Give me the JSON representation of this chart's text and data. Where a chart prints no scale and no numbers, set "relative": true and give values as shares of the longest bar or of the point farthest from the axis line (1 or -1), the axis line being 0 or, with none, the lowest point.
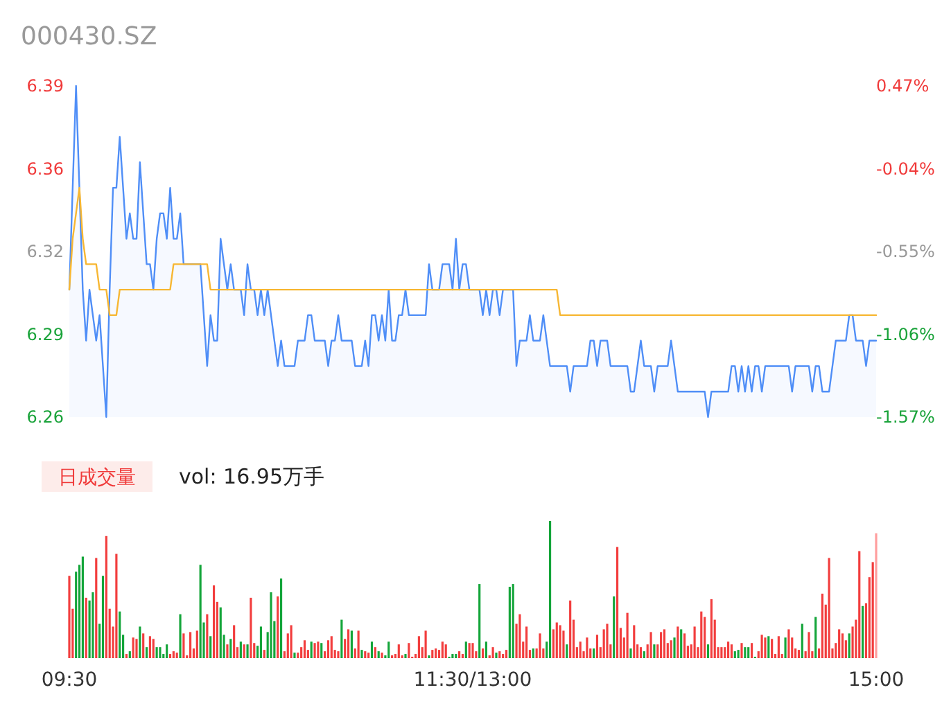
{
  "chart_data": [
    {
      "type": "line",
      "title": "000430.SZ",
      "tick_labels": "y",
      "categories": [
        null,
        null,
        null,
        null,
        null,
        null,
        null,
        null,
        null,
        null,
        null,
        null,
        null,
        null,
        null,
        null,
        null,
        null,
        null,
        null,
        null,
        null,
        null,
        null,
        null,
        null,
        null,
        null,
        null,
        null,
        null,
        null,
        null,
        null,
        null,
        null,
        null,
        null,
        null,
        null,
        null,
        null,
        null,
        null,
        null,
        null,
        null,
        null,
        null,
        null,
        null,
        null,
        null,
        null,
        null,
        null,
        null,
        null,
        null,
        null,
        null,
        null,
        null,
        null,
        null,
        null,
        null,
        null,
        null,
        null,
        null,
        null,
        null,
        null,
        null,
        null,
        null,
        null,
        null,
        null,
        null,
        null,
        null,
        null,
        null,
        null,
        null,
        null,
        null,
        null,
        null,
        null,
        null,
        null,
        null,
        null,
        null,
        null,
        null,
        null,
        null,
        null,
        null,
        null,
        null,
        null,
        null,
        null,
        null,
        null,
        null,
        null,
        null,
        null,
        null,
        null,
        null,
        null,
        null,
        null,
        null,
        null,
        null,
        null,
        null,
        null,
        null,
        null,
        null,
        null,
        null,
        null,
        null,
        null,
        null,
        null,
        null,
        null,
        null,
        null,
        null,
        null,
        null,
        null,
        null,
        null,
        null,
        null,
        null,
        null,
        null,
        null,
        null,
        null,
        null,
        null,
        null,
        null,
        null,
        null,
        null,
        null,
        null,
        null,
        null,
        null,
        null,
        null,
        null,
        null,
        null,
        null,
        null,
        null,
        null,
        null,
        null,
        null,
        null,
        null,
        null,
        null,
        null,
        null,
        null,
        null,
        null,
        null,
        null,
        null,
        null,
        null,
        null,
        null,
        null,
        null,
        null,
        null,
        null,
        null,
        null,
        null,
        null,
        null,
        null,
        null,
        null,
        null,
        null,
        null,
        null,
        null,
        null,
        null,
        null,
        null,
        null,
        null,
        null,
        null,
        null,
        null,
        null,
        null,
        null,
        null,
        null,
        null,
        null,
        null,
        null,
        null,
        null,
        null,
        null,
        null,
        null,
        null,
        null,
        null,
        null
      ],
      "ylim": [
        6.26,
        6.39
      ],
      "yticks": [
        6.26,
        {
          "value": 6.2925,
          "label": "6.29"
        },
        {
          "value": 6.325,
          "label": "6.32"
        },
        {
          "value": 6.3575,
          "label": "6.36"
        },
        6.39
      ],
      "y2lim": [
        -1.57,
        0.47
      ],
      "y2ticks": [
        {
          "value": -1.57,
          "label": "-1.57%"
        },
        {
          "value": -1.06,
          "label": "-1.06%"
        },
        {
          "value": -0.55,
          "label": "-0.55%"
        },
        {
          "value": -0.04,
          "label": "-0.04%"
        },
        {
          "value": 0.47,
          "label": "0.47%"
        }
      ],
      "series": [
        {
          "type": "area",
          "color": "#4f8ef7",
          "values": [
            6.31,
            6.35,
            6.39,
            6.35,
            6.31,
            6.29,
            6.31,
            6.3,
            6.29,
            6.3,
            6.28,
            6.26,
            6.31,
            6.35,
            6.35,
            6.37,
            6.35,
            6.33,
            6.34,
            6.33,
            6.33,
            6.36,
            6.34,
            6.32,
            6.32,
            6.31,
            6.33,
            6.34,
            6.34,
            6.33,
            6.35,
            6.33,
            6.33,
            6.34,
            6.32,
            6.32,
            6.32,
            6.32,
            6.32,
            6.32,
            6.3,
            6.28,
            6.3,
            6.29,
            6.29,
            6.33,
            6.32,
            6.31,
            6.32,
            6.31,
            6.31,
            6.31,
            6.3,
            6.32,
            6.31,
            6.31,
            6.3,
            6.31,
            6.3,
            6.31,
            6.3,
            6.29,
            6.28,
            6.29,
            6.28,
            6.28,
            6.28,
            6.28,
            6.29,
            6.29,
            6.29,
            6.3,
            6.3,
            6.29,
            6.29,
            6.29,
            6.29,
            6.28,
            6.29,
            6.29,
            6.3,
            6.29,
            6.29,
            6.29,
            6.29,
            6.28,
            6.28,
            6.28,
            6.29,
            6.28,
            6.3,
            6.3,
            6.29,
            6.3,
            6.29,
            6.31,
            6.29,
            6.29,
            6.3,
            6.3,
            6.31,
            6.3,
            6.3,
            6.3,
            6.3,
            6.3,
            6.3,
            6.32,
            6.31,
            6.31,
            6.31,
            6.32,
            6.32,
            6.32,
            6.31,
            6.33,
            6.31,
            6.32,
            6.32,
            6.31,
            6.31,
            6.31,
            6.31,
            6.3,
            6.31,
            6.3,
            6.31,
            6.31,
            6.3,
            6.31,
            6.31,
            6.31,
            6.31,
            6.28,
            6.29,
            6.29,
            6.29,
            6.3,
            6.29,
            6.29,
            6.29,
            6.3,
            6.29,
            6.28,
            6.28,
            6.28,
            6.28,
            6.28,
            6.28,
            6.27,
            6.28,
            6.28,
            6.28,
            6.28,
            6.28,
            6.29,
            6.29,
            6.28,
            6.29,
            6.29,
            6.29,
            6.28,
            6.28,
            6.28,
            6.28,
            6.28,
            6.28,
            6.27,
            6.27,
            6.28,
            6.29,
            6.28,
            6.28,
            6.28,
            6.27,
            6.28,
            6.28,
            6.28,
            6.28,
            6.29,
            6.28,
            6.27,
            6.27,
            6.27,
            6.27,
            6.27,
            6.27,
            6.27,
            6.27,
            6.27,
            6.26,
            6.27,
            6.27,
            6.27,
            6.27,
            6.27,
            6.27,
            6.28,
            6.28,
            6.27,
            6.28,
            6.27,
            6.28,
            6.27,
            6.28,
            6.28,
            6.27,
            6.28,
            6.28,
            6.28,
            6.28,
            6.28,
            6.28,
            6.28,
            6.28,
            6.27,
            6.28,
            6.28,
            6.28,
            6.28,
            6.28,
            6.27,
            6.28,
            6.28,
            6.27,
            6.27,
            6.27,
            6.28,
            6.29,
            6.29,
            6.29,
            6.29,
            6.3,
            6.3,
            6.29,
            6.29,
            6.29,
            6.28,
            6.29,
            6.29,
            6.29
          ]
        },
        {
          "color": "#f7b733",
          "values": [
            6.31,
            6.33,
            6.34,
            6.35,
            6.33,
            6.32,
            6.32,
            6.32,
            6.32,
            6.31,
            6.31,
            6.31,
            6.3,
            6.3,
            6.3,
            6.31,
            6.31,
            6.31,
            6.31,
            6.31,
            6.31,
            6.31,
            6.31,
            6.31,
            6.31,
            6.31,
            6.31,
            6.31,
            6.31,
            6.31,
            6.31,
            6.32,
            6.32,
            6.32,
            6.32,
            6.32,
            6.32,
            6.32,
            6.32,
            6.32,
            6.32,
            6.32,
            6.31,
            6.31,
            6.31,
            6.31,
            6.31,
            6.31,
            6.31,
            6.31,
            6.31,
            6.31,
            6.31,
            6.31,
            6.31,
            6.31,
            6.31,
            6.31,
            6.31,
            6.31,
            6.31,
            6.31,
            6.31,
            6.31,
            6.31,
            6.31,
            6.31,
            6.31,
            6.31,
            6.31,
            6.31,
            6.31,
            6.31,
            6.31,
            6.31,
            6.31,
            6.31,
            6.31,
            6.31,
            6.31,
            6.31,
            6.31,
            6.31,
            6.31,
            6.31,
            6.31,
            6.31,
            6.31,
            6.31,
            6.31,
            6.31,
            6.31,
            6.31,
            6.31,
            6.31,
            6.31,
            6.31,
            6.31,
            6.31,
            6.31,
            6.31,
            6.31,
            6.31,
            6.31,
            6.31,
            6.31,
            6.31,
            6.31,
            6.31,
            6.31,
            6.31,
            6.31,
            6.31,
            6.31,
            6.31,
            6.31,
            6.31,
            6.31,
            6.31,
            6.31,
            6.31,
            6.31,
            6.31,
            6.31,
            6.31,
            6.31,
            6.31,
            6.31,
            6.31,
            6.31,
            6.31,
            6.31,
            6.31,
            6.31,
            6.31,
            6.31,
            6.31,
            6.31,
            6.31,
            6.31,
            6.31,
            6.31,
            6.31,
            6.31,
            6.31,
            6.31,
            6.3,
            6.3,
            6.3,
            6.3,
            6.3,
            6.3,
            6.3,
            6.3,
            6.3,
            6.3,
            6.3,
            6.3,
            6.3,
            6.3,
            6.3,
            6.3,
            6.3,
            6.3,
            6.3,
            6.3,
            6.3,
            6.3,
            6.3,
            6.3,
            6.3,
            6.3,
            6.3,
            6.3,
            6.3,
            6.3,
            6.3,
            6.3,
            6.3,
            6.3,
            6.3,
            6.3,
            6.3,
            6.3,
            6.3,
            6.3,
            6.3,
            6.3,
            6.3,
            6.3,
            6.3,
            6.3,
            6.3,
            6.3,
            6.3,
            6.3,
            6.3,
            6.3,
            6.3,
            6.3,
            6.3,
            6.3,
            6.3,
            6.3,
            6.3,
            6.3,
            6.3,
            6.3,
            6.3,
            6.3,
            6.3,
            6.3,
            6.3,
            6.3,
            6.3,
            6.3,
            6.3,
            6.3,
            6.3,
            6.3,
            6.3,
            6.3,
            6.3,
            6.3,
            6.3,
            6.3,
            6.3,
            6.3,
            6.3,
            6.3,
            6.3,
            6.3,
            6.3,
            6.3,
            6.3,
            6.3,
            6.3,
            6.3,
            6.3,
            6.3,
            6.3
          ]
        }
      ]
    },
    {
      "type": "bar",
      "title": "日成交量",
      "subtitle": "vol: 16.95万手",
      "relative": true,
      "categories": [
        "09:30",
        null,
        null,
        null,
        null,
        null,
        null,
        null,
        null,
        null,
        null,
        null,
        null,
        null,
        null,
        null,
        null,
        null,
        null,
        null,
        null,
        null,
        null,
        null,
        null,
        null,
        null,
        null,
        null,
        null,
        null,
        null,
        null,
        null,
        null,
        null,
        null,
        null,
        null,
        null,
        null,
        null,
        null,
        null,
        null,
        null,
        null,
        null,
        null,
        null,
        null,
        null,
        null,
        null,
        null,
        null,
        null,
        null,
        null,
        null,
        null,
        null,
        null,
        null,
        null,
        null,
        null,
        null,
        null,
        null,
        null,
        null,
        null,
        null,
        null,
        null,
        null,
        null,
        null,
        null,
        null,
        null,
        null,
        null,
        null,
        null,
        null,
        null,
        null,
        null,
        null,
        null,
        null,
        null,
        null,
        null,
        null,
        null,
        null,
        null,
        null,
        null,
        null,
        null,
        null,
        null,
        null,
        null,
        null,
        null,
        null,
        null,
        null,
        null,
        null,
        null,
        null,
        null,
        null,
        null,
        "11:30/13:00",
        null,
        null,
        null,
        null,
        null,
        null,
        null,
        null,
        null,
        null,
        null,
        null,
        null,
        null,
        null,
        null,
        null,
        null,
        null,
        null,
        null,
        null,
        null,
        null,
        null,
        null,
        null,
        null,
        null,
        null,
        null,
        null,
        null,
        null,
        null,
        null,
        null,
        null,
        null,
        null,
        null,
        null,
        null,
        null,
        null,
        null,
        null,
        null,
        null,
        null,
        null,
        null,
        null,
        null,
        null,
        null,
        null,
        null,
        null,
        null,
        null,
        null,
        null,
        null,
        null,
        null,
        null,
        null,
        null,
        null,
        null,
        null,
        null,
        null,
        null,
        null,
        null,
        null,
        null,
        null,
        null,
        null,
        null,
        null,
        null,
        null,
        null,
        null,
        null,
        null,
        null,
        null,
        null,
        null,
        null,
        null,
        null,
        null,
        null,
        null,
        null,
        null,
        null,
        null,
        null,
        null,
        null,
        null,
        null,
        null,
        null,
        null,
        null,
        null,
        null,
        null,
        null,
        null,
        null,
        "15:00"
      ],
      "values": [
        0.6,
        0.36,
        0.63,
        0.68,
        0.74,
        0.44,
        0.42,
        0.48,
        0.73,
        0.25,
        0.6,
        0.89,
        0.36,
        0.23,
        0.76,
        0.34,
        0.17,
        0.03,
        0.05,
        0.15,
        0.14,
        0.23,
        0.18,
        0.08,
        0.16,
        0.14,
        0.08,
        0.08,
        0.03,
        0.1,
        0.03,
        0.05,
        0.04,
        0.32,
        0.18,
        0.02,
        0.19,
        0.07,
        0.2,
        0.68,
        0.26,
        0.32,
        0.16,
        0.53,
        0.41,
        0.37,
        0.17,
        0.1,
        0.14,
        0.24,
        0.08,
        0.12,
        0.1,
        0.1,
        0.44,
        0.11,
        0.09,
        0.23,
        0.06,
        0.19,
        0.48,
        0.27,
        0.45,
        0.58,
        0.05,
        0.18,
        0.24,
        0.04,
        0.04,
        0.08,
        0.13,
        0.06,
        0.12,
        0.11,
        0.12,
        0.11,
        0.05,
        0.13,
        0.16,
        0.06,
        0.05,
        0.28,
        0.14,
        0.21,
        0.2,
        0.07,
        0.2,
        0.06,
        0.05,
        0.04,
        0.12,
        0.08,
        0.05,
        0.04,
        0.02,
        0.12,
        0.02,
        0.03,
        0.1,
        0.02,
        0.03,
        0.11,
        0.01,
        0.03,
        0.16,
        0.08,
        0.2,
        0.02,
        0.06,
        0.07,
        0.06,
        0.12,
        0.1,
        0.01,
        0.03,
        0.03,
        0.05,
        0.03,
        0.12,
        0.11,
        0.11,
        0.05,
        0.54,
        0.07,
        0.12,
        0.02,
        0.08,
        0.04,
        0.05,
        0.03,
        0.06,
        0.52,
        0.54,
        0.25,
        0.32,
        0.12,
        0.23,
        0.06,
        0.07,
        0.07,
        0.18,
        0.07,
        0.12,
        1,
        0.21,
        0.26,
        0.24,
        0.2,
        0.1,
        0.42,
        0.28,
        0.08,
        0.12,
        0.05,
        0.15,
        0.07,
        0.07,
        0.17,
        0.08,
        0.21,
        0.25,
        0.1,
        0.45,
        0.81,
        0.22,
        0.15,
        0.33,
        0.07,
        0.24,
        0.1,
        0.08,
        0.05,
        0.1,
        0.19,
        0.1,
        0.1,
        0.19,
        0.21,
        0.11,
        0.13,
        0.15,
        0.23,
        0.21,
        0.18,
        0.09,
        0.1,
        0.23,
        0.08,
        0.34,
        0.3,
        0.1,
        0.43,
        0.28,
        0.08,
        0.08,
        0.08,
        0.12,
        0.1,
        0.05,
        0.06,
        0.11,
        0.08,
        0.08,
        0.11,
        0.01,
        0.05,
        0.17,
        0.15,
        0.16,
        0.14,
        0.03,
        0.16,
        0.03,
        0.15,
        0.21,
        0.15,
        0.07,
        0.06,
        0.25,
        0.05,
        0.19,
        0.05,
        0.3,
        0.07,
        0.47,
        0.39,
        0.73,
        0.07,
        0.11,
        0.21,
        0.18,
        0.13,
        0.18,
        0.23,
        0.28,
        0.78,
        0.38,
        0.4,
        0.59,
        0.7,
        0.91
      ],
      "colors": [
        "#f23d3d",
        "#f23d3d",
        "#14a53a",
        "#14a53a",
        "#14a53a",
        "#f23d3d",
        "#14a53a",
        "#14a53a",
        "#f23d3d",
        "#14a53a",
        "#14a53a",
        "#f23d3d",
        "#f23d3d",
        "#f23d3d",
        "#f23d3d",
        "#14a53a",
        "#14a53a",
        "#f23d3d",
        "#14a53a",
        "#f23d3d",
        "#f23d3d",
        "#14a53a",
        "#f23d3d",
        "#14a53a",
        "#f23d3d",
        "#f23d3d",
        "#14a53a",
        "#14a53a",
        "#14a53a",
        "#14a53a",
        "#f23d3d",
        "#f23d3d",
        "#f23d3d",
        "#14a53a",
        "#f23d3d",
        "#f23d3d",
        "#f23d3d",
        "#f23d3d",
        "#f23d3d",
        "#14a53a",
        "#14a53a",
        "#f23d3d",
        "#14a53a",
        "#f23d3d",
        "#f23d3d",
        "#14a53a",
        "#14a53a",
        "#f23d3d",
        "#14a53a",
        "#f23d3d",
        "#f23d3d",
        "#14a53a",
        "#f23d3d",
        "#14a53a",
        "#f23d3d",
        "#f23d3d",
        "#14a53a",
        "#14a53a",
        "#f23d3d",
        "#14a53a",
        "#14a53a",
        "#14a53a",
        "#f23d3d",
        "#14a53a",
        "#f23d3d",
        "#f23d3d",
        "#f23d3d",
        "#14a53a",
        "#f23d3d",
        "#f23d3d",
        "#f23d3d",
        "#f23d3d",
        "#14a53a",
        "#f23d3d",
        "#f23d3d",
        "#14a53a",
        "#f23d3d",
        "#f23d3d",
        "#f23d3d",
        "#f23d3d",
        "#f23d3d",
        "#14a53a",
        "#f23d3d",
        "#f23d3d",
        "#14a53a",
        "#f23d3d",
        "#f23d3d",
        "#14a53a",
        "#f23d3d",
        "#f23d3d",
        "#14a53a",
        "#f23d3d",
        "#14a53a",
        "#f23d3d",
        "#14a53a",
        "#14a53a",
        "#f23d3d",
        "#f23d3d",
        "#f23d3d",
        "#f23d3d",
        "#14a53a",
        "#f23d3d",
        "#f23d3d",
        "#f23d3d",
        "#f23d3d",
        "#f23d3d",
        "#f23d3d",
        "#14a53a",
        "#f23d3d",
        "#f23d3d",
        "#f23d3d",
        "#f23d3d",
        "#f23d3d",
        "#14a53a",
        "#14a53a",
        "#14a53a",
        "#f23d3d",
        "#f23d3d",
        "#14a53a",
        "#f23d3d",
        "#f23d3d",
        "#f23d3d",
        "#14a53a",
        "#f23d3d",
        "#14a53a",
        "#f23d3d",
        "#f23d3d",
        "#14a53a",
        "#f23d3d",
        "#f23d3d",
        "#f23d3d",
        "#14a53a",
        "#14a53a",
        "#f23d3d",
        "#f23d3d",
        "#f23d3d",
        "#f23d3d",
        "#f23d3d",
        "#14a53a",
        "#f23d3d",
        "#f23d3d",
        "#f23d3d",
        "#14a53a",
        "#14a53a",
        "#f23d3d",
        "#f23d3d",
        "#f23d3d",
        "#f23d3d",
        "#14a53a",
        "#f23d3d",
        "#f23d3d",
        "#f23d3d",
        "#f23d3d",
        "#f23d3d",
        "#f23d3d",
        "#f23d3d",
        "#14a53a",
        "#f23d3d",
        "#f23d3d",
        "#f23d3d",
        "#f23d3d",
        "#f23d3d",
        "#14a53a",
        "#f23d3d",
        "#f23d3d",
        "#f23d3d",
        "#f23d3d",
        "#14a53a",
        "#f23d3d",
        "#f23d3d",
        "#f23d3d",
        "#14a53a",
        "#f23d3d",
        "#f23d3d",
        "#14a53a",
        "#f23d3d",
        "#f23d3d",
        "#f23d3d",
        "#f23d3d",
        "#f23d3d",
        "#14a53a",
        "#f23d3d",
        "#14a53a",
        "#f23d3d",
        "#f23d3d",
        "#f23d3d",
        "#f23d3d",
        "#f23d3d",
        "#f23d3d",
        "#f23d3d",
        "#14a53a",
        "#f23d3d",
        "#f23d3d",
        "#f23d3d",
        "#f23d3d",
        "#f23d3d",
        "#f23d3d",
        "#f23d3d",
        "#14a53a",
        "#14a53a",
        "#f23d3d",
        "#14a53a",
        "#14a53a",
        "#f23d3d",
        "#14a53a",
        "#f23d3d",
        "#f23d3d",
        "#f23d3d",
        "#14a53a",
        "#f23d3d",
        "#f23d3d",
        "#f23d3d",
        "#f23d3d",
        "#14a53a",
        "#f23d3d",
        "#f23d3d",
        "#f23d3d",
        "#f23d3d",
        "#14a53a",
        "#f23d3d",
        "#f23d3d",
        "#f23d3d",
        "#14a53a",
        "#f23d3d",
        "#f23d3d",
        "#f23d3d",
        "#f23d3d",
        "#f23d3d",
        "#f23d3d",
        "#f23d3d",
        "#f23d3d",
        "#f23d3d",
        "#14a53a",
        "#f23d3d",
        "#f23d3d",
        "#f23d3d",
        "#14a53a",
        "#f23d3d",
        "#f23d3d",
        "#f23d3d",
        "#ff9e9e"
      ]
    }
  ]
}
